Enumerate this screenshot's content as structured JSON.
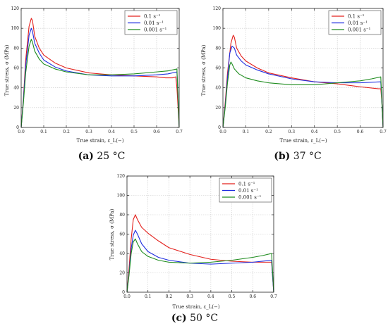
{
  "chart_data": [
    {
      "type": "line",
      "caption_label": "(a)",
      "caption_text": "25 °C",
      "xlabel": "True strain, ε_L(−)",
      "ylabel": "True stress, σ (MPa)",
      "xlim": [
        0,
        0.7
      ],
      "ylim": [
        0,
        120
      ],
      "xticks": [
        "0.0",
        "0.1",
        "0.2",
        "0.3",
        "0.4",
        "0.5",
        "0.6",
        "0.7"
      ],
      "yticks": [
        "0",
        "20",
        "40",
        "60",
        "80",
        "100",
        "120"
      ],
      "grid": true,
      "legend_position": "top-right",
      "series": [
        {
          "name": "0.1 s⁻¹",
          "color": "#e3201c",
          "x": [
            0,
            0.01,
            0.02,
            0.035,
            0.045,
            0.05,
            0.06,
            0.08,
            0.1,
            0.15,
            0.2,
            0.3,
            0.4,
            0.5,
            0.6,
            0.64,
            0.67,
            0.685,
            0.69,
            0.695,
            0.7
          ],
          "y": [
            0,
            30,
            68,
            102,
            110,
            108,
            92,
            80,
            73,
            65,
            60,
            55,
            53,
            52,
            51,
            50,
            50,
            51,
            40,
            20,
            0
          ]
        },
        {
          "name": "0.01 s⁻¹",
          "color": "#1f2ee0",
          "x": [
            0,
            0.01,
            0.02,
            0.035,
            0.045,
            0.05,
            0.06,
            0.08,
            0.1,
            0.15,
            0.2,
            0.3,
            0.4,
            0.5,
            0.6,
            0.65,
            0.69,
            0.695,
            0.7
          ],
          "y": [
            0,
            28,
            62,
            93,
            100,
            97,
            85,
            75,
            68,
            61,
            57,
            53,
            52,
            52,
            53,
            54,
            56,
            30,
            0
          ]
        },
        {
          "name": "0.001 s⁻¹",
          "color": "#1e8c1e",
          "x": [
            0,
            0.01,
            0.02,
            0.035,
            0.045,
            0.05,
            0.06,
            0.08,
            0.1,
            0.15,
            0.2,
            0.3,
            0.4,
            0.5,
            0.6,
            0.65,
            0.69,
            0.695,
            0.7
          ],
          "y": [
            0,
            25,
            55,
            82,
            89,
            86,
            77,
            69,
            64,
            59,
            56,
            53,
            53,
            54,
            56,
            57,
            59,
            30,
            0
          ]
        }
      ]
    },
    {
      "type": "line",
      "caption_label": "(b)",
      "caption_text": "37 °C",
      "xlabel": "True strain, ε_L(−)",
      "ylabel": "True stress, σ (MPa)",
      "xlim": [
        0,
        0.7
      ],
      "ylim": [
        0,
        120
      ],
      "xticks": [
        "0.0",
        "0.1",
        "0.2",
        "0.3",
        "0.4",
        "0.5",
        "0.6",
        "0.7"
      ],
      "yticks": [
        "0",
        "20",
        "40",
        "60",
        "80",
        "100",
        "120"
      ],
      "grid": true,
      "legend_position": "top-right",
      "series": [
        {
          "name": "0.1 s⁻¹",
          "color": "#e3201c",
          "x": [
            0,
            0.01,
            0.02,
            0.035,
            0.045,
            0.05,
            0.06,
            0.08,
            0.1,
            0.15,
            0.2,
            0.3,
            0.4,
            0.5,
            0.6,
            0.68,
            0.69,
            0.695,
            0.7
          ],
          "y": [
            0,
            25,
            55,
            85,
            93,
            91,
            80,
            72,
            67,
            60,
            55,
            50,
            46,
            44,
            41,
            39,
            39,
            25,
            0
          ]
        },
        {
          "name": "0.01 s⁻¹",
          "color": "#1f2ee0",
          "x": [
            0,
            0.01,
            0.02,
            0.03,
            0.04,
            0.05,
            0.06,
            0.08,
            0.1,
            0.15,
            0.2,
            0.3,
            0.4,
            0.5,
            0.6,
            0.69,
            0.695,
            0.7
          ],
          "y": [
            0,
            22,
            50,
            75,
            82,
            80,
            73,
            67,
            63,
            58,
            54,
            49,
            46,
            45,
            45,
            46,
            25,
            0
          ]
        },
        {
          "name": "0.001 s⁻¹",
          "color": "#1e8c1e",
          "x": [
            0,
            0.01,
            0.02,
            0.03,
            0.035,
            0.04,
            0.05,
            0.07,
            0.1,
            0.15,
            0.2,
            0.3,
            0.4,
            0.5,
            0.6,
            0.65,
            0.69,
            0.695,
            0.7
          ],
          "y": [
            0,
            20,
            45,
            63,
            66,
            64,
            59,
            54,
            50,
            47,
            45,
            43,
            43,
            45,
            47,
            49,
            51,
            25,
            0
          ]
        }
      ]
    },
    {
      "type": "line",
      "caption_label": "(c)",
      "caption_text": "50 °C",
      "xlabel": "True strain, ε_L(−)",
      "ylabel": "True stress, σ (MPa)",
      "xlim": [
        0,
        0.7
      ],
      "ylim": [
        0,
        120
      ],
      "xticks": [
        "0.0",
        "0.1",
        "0.2",
        "0.3",
        "0.4",
        "0.5",
        "0.6",
        "0.7"
      ],
      "yticks": [
        "0",
        "20",
        "40",
        "60",
        "80",
        "100",
        "120"
      ],
      "grid": true,
      "legend_position": "top-right",
      "series": [
        {
          "name": "0.1 s⁻¹",
          "color": "#e3201c",
          "x": [
            0,
            0.01,
            0.02,
            0.03,
            0.04,
            0.05,
            0.07,
            0.1,
            0.15,
            0.2,
            0.3,
            0.4,
            0.5,
            0.6,
            0.69,
            0.695,
            0.7
          ],
          "y": [
            0,
            25,
            55,
            75,
            80,
            75,
            67,
            61,
            53,
            46,
            39,
            34,
            32,
            31,
            31,
            15,
            0
          ]
        },
        {
          "name": "0.01 s⁻¹",
          "color": "#1f2ee0",
          "x": [
            0,
            0.01,
            0.02,
            0.03,
            0.04,
            0.05,
            0.07,
            0.1,
            0.15,
            0.2,
            0.3,
            0.4,
            0.5,
            0.6,
            0.69,
            0.695,
            0.7
          ],
          "y": [
            0,
            20,
            45,
            59,
            64,
            60,
            50,
            42,
            36,
            33,
            30,
            29,
            30,
            31,
            33,
            15,
            0
          ]
        },
        {
          "name": "0.001 s⁻¹",
          "color": "#1e8c1e",
          "x": [
            0,
            0.01,
            0.02,
            0.03,
            0.04,
            0.05,
            0.07,
            0.1,
            0.15,
            0.2,
            0.3,
            0.4,
            0.5,
            0.6,
            0.65,
            0.69,
            0.695,
            0.7
          ],
          "y": [
            0,
            18,
            40,
            52,
            55,
            50,
            42,
            37,
            33,
            31,
            30,
            31,
            33,
            36,
            38,
            40,
            20,
            0
          ]
        }
      ]
    }
  ]
}
